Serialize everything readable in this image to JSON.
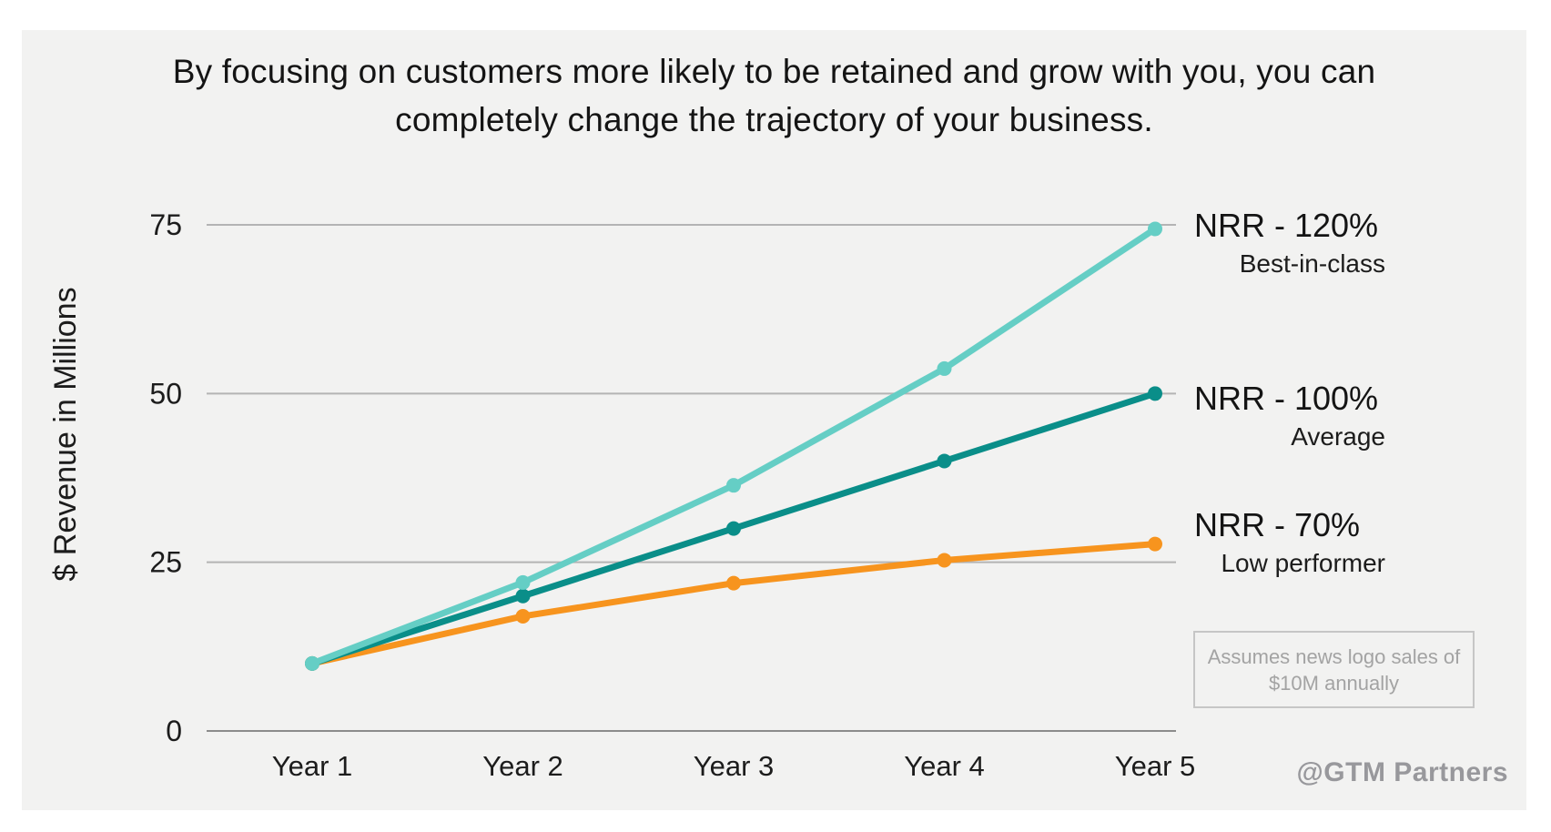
{
  "title": {
    "line1": "By focusing on customers more likely to be retained and grow with you, you can",
    "line2": "completely change the trajectory of your business."
  },
  "chart_data": {
    "type": "line",
    "x_categories": [
      "Year 1",
      "Year 2",
      "Year 3",
      "Year 4",
      "Year 5"
    ],
    "ylabel": "$ Revenue in Millions",
    "xlabel": "",
    "yticks": [
      0,
      25,
      50,
      75
    ],
    "ylim": [
      0,
      81
    ],
    "grid": true,
    "legend_position": "right-of-line-endpoints",
    "series": [
      {
        "name": "NRR - 120%",
        "subtitle": "Best-in-class",
        "color": "#65cec5",
        "values": [
          10,
          22,
          36.4,
          53.7,
          74.4
        ]
      },
      {
        "name": "NRR - 100%",
        "subtitle": "Average",
        "color": "#0a8e89",
        "values": [
          10,
          20,
          30,
          40,
          50
        ]
      },
      {
        "name": "NRR - 70%",
        "subtitle": "Low performer",
        "color": "#f7941e",
        "values": [
          10,
          17,
          21.9,
          25.3,
          27.7
        ]
      }
    ]
  },
  "note_box": {
    "line1": "Assumes news logo sales of",
    "line2": "$10M annually"
  },
  "watermark": {
    "text": "@GTM Partners"
  },
  "colors": {
    "panel_background": "#f2f2f1",
    "page_background": "#ffffff",
    "gridline": "#b4b4b4",
    "axis_line": "#8c8c8c",
    "title_text": "#141414",
    "note_text": "#a3a3a3",
    "note_border": "#c6c6c6",
    "watermark_text": "#98989c"
  }
}
